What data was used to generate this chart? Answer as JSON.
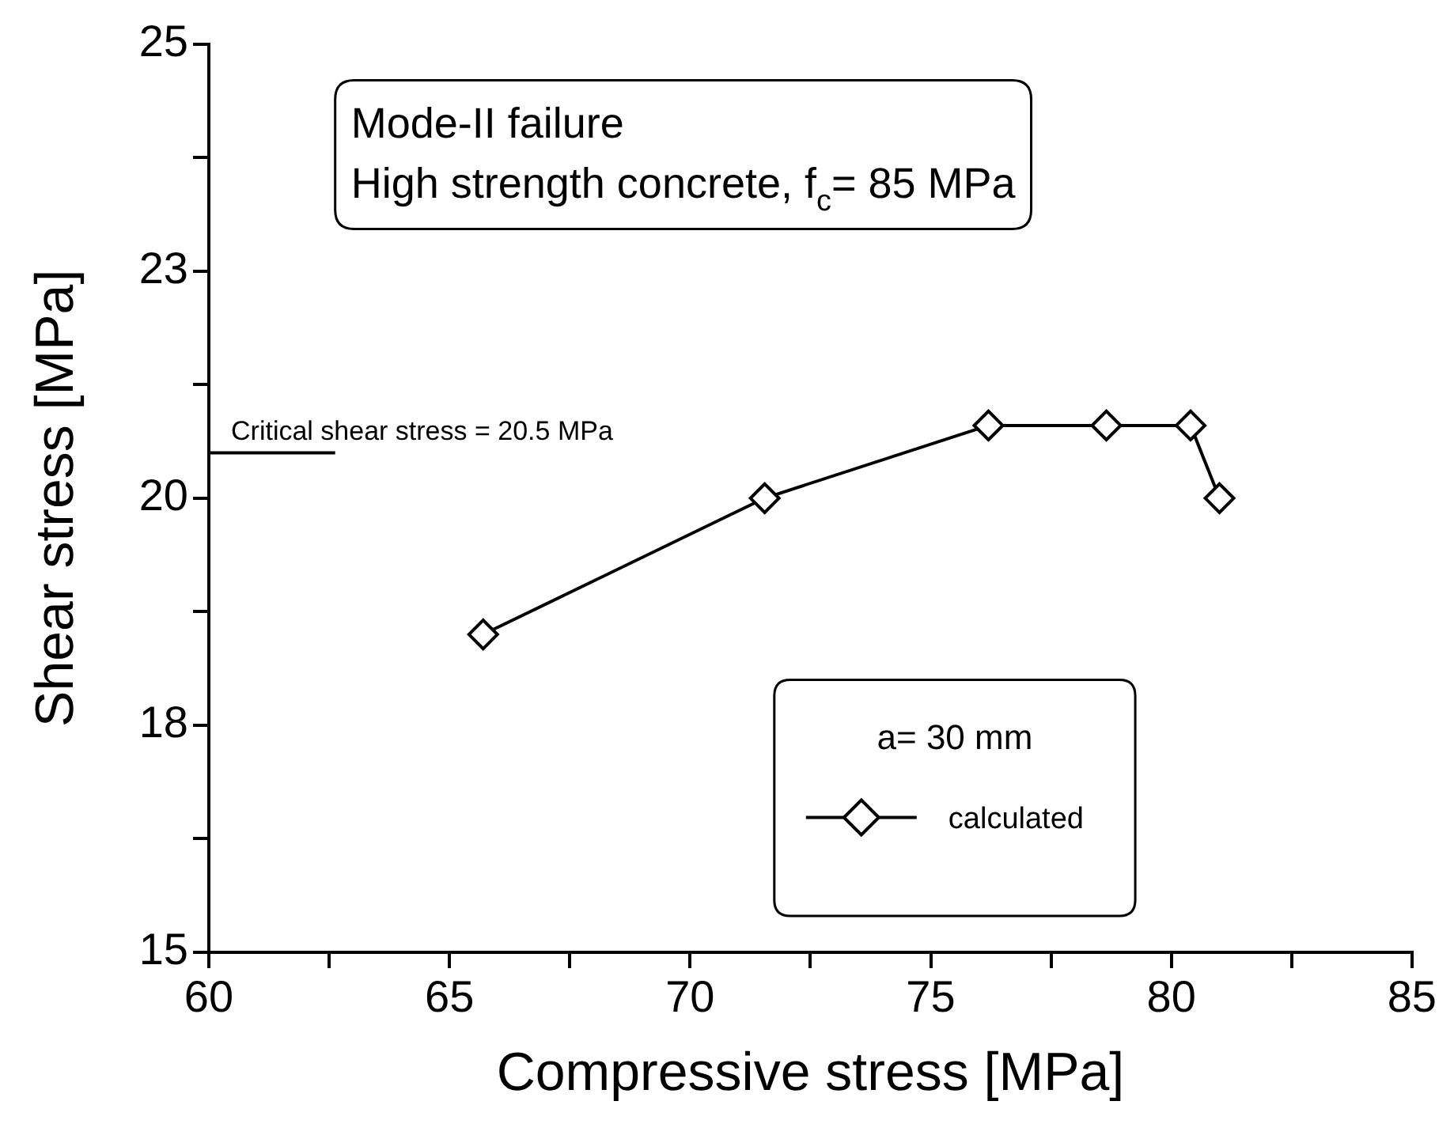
{
  "chart_data": {
    "type": "line",
    "xlabel": "Compressive stress [MPa]",
    "ylabel": "Shear stress [MPa]",
    "x": [
      65.7,
      71.55,
      76.2,
      78.65,
      80.4,
      81.0
    ],
    "series": [
      {
        "name": "calculated",
        "color": "#000000",
        "values": [
          18.5,
          20,
          20.8,
          20.8,
          20.8,
          20
        ]
      }
    ],
    "xlim": [
      60,
      85
    ],
    "xticks": [
      60,
      {
        "value": 62.5,
        "label": null
      },
      65,
      {
        "value": 67.5,
        "label": null
      },
      70,
      {
        "value": 72.5,
        "label": null
      },
      75,
      {
        "value": 77.5,
        "label": null
      },
      80,
      {
        "value": 82.5,
        "label": null
      },
      85
    ],
    "ylim": [
      15,
      25
    ],
    "yticks": [
      15,
      {
        "value": 16.25,
        "label": null
      },
      {
        "value": 17.5,
        "label": "18"
      },
      {
        "value": 18.75,
        "label": null
      },
      20,
      {
        "value": 21.25,
        "label": null
      },
      {
        "value": 22.5,
        "label": "23"
      },
      {
        "value": 23.75,
        "label": null
      },
      25
    ],
    "ref_lines": [
      {
        "axis": "y",
        "value": 20.5,
        "label": "Critical shear stress = 20.5 MPa",
        "color": "#000000"
      }
    ],
    "annotations": [
      "Mode-II failure",
      "High strength concrete, f$_{c}$= 85 MPa"
    ],
    "legend_title": "a= 30 mm",
    "legend": "bottom right",
    "marker": "diamond",
    "line_style": "solid",
    "grid": false
  }
}
